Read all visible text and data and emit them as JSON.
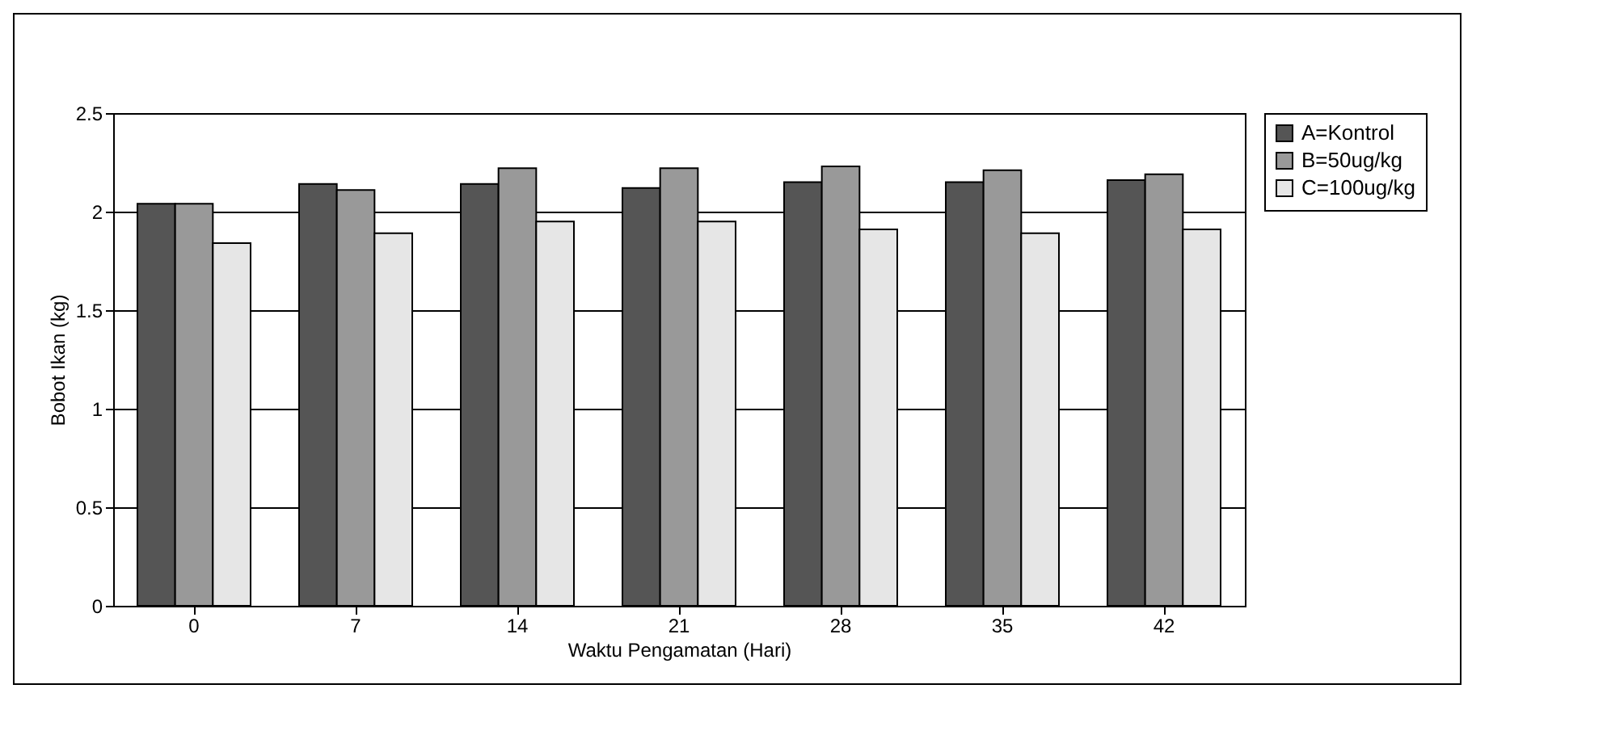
{
  "chart_data": {
    "type": "bar",
    "xlabel": "Waktu Pengamatan (Hari)",
    "ylabel": "Bobot Ikan (kg)",
    "categories": [
      "0",
      "7",
      "14",
      "21",
      "28",
      "35",
      "42"
    ],
    "series": [
      {
        "name": "A=Kontrol",
        "color": "#555555",
        "values": [
          2.04,
          2.14,
          2.14,
          2.12,
          2.15,
          2.15,
          2.16
        ]
      },
      {
        "name": "B=50ug/kg",
        "color": "#999999",
        "values": [
          2.04,
          2.11,
          2.22,
          2.22,
          2.23,
          2.21,
          2.19
        ]
      },
      {
        "name": "C=100ug/kg",
        "color": "#e6e6e6",
        "values": [
          1.84,
          1.89,
          1.95,
          1.95,
          1.91,
          1.89,
          1.91
        ]
      }
    ],
    "ylim": [
      0,
      2.5
    ],
    "yticks": [
      0,
      0.5,
      1,
      1.5,
      2,
      2.5
    ],
    "grid": "y",
    "legend": "right"
  }
}
